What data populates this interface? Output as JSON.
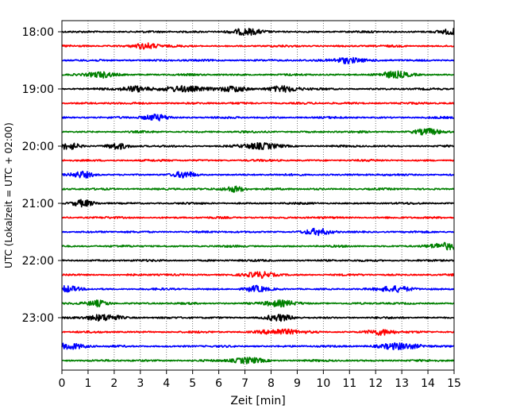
{
  "chart_data": {
    "type": "line",
    "title": "",
    "xlabel": "Zeit  [min]",
    "ylabel": "UTC (Lokalzeit = UTC + 02:00)",
    "xlim": [
      0,
      15
    ],
    "x_ticks": [
      "0",
      "1",
      "2",
      "3",
      "4",
      "5",
      "6",
      "7",
      "8",
      "9",
      "10",
      "11",
      "12",
      "13",
      "14",
      "15"
    ],
    "y_tick_labels": [
      "18:00",
      "19:00",
      "20:00",
      "21:00",
      "22:00",
      "23:00"
    ],
    "grid": "vertical dotted",
    "legend": "none",
    "trace_colors": [
      "#000000",
      "#ff0000",
      "#0000ff",
      "#008000"
    ],
    "traces": [
      {
        "start": "18:00",
        "bursts": [
          [
            7.0,
            0.6
          ],
          [
            15.0,
            0.6
          ]
        ]
      },
      {
        "start": "18:15",
        "bursts": [
          [
            3.2,
            0.5
          ]
        ]
      },
      {
        "start": "18:30",
        "bursts": [
          [
            10.9,
            0.6
          ]
        ]
      },
      {
        "start": "18:45",
        "bursts": [
          [
            1.5,
            0.5
          ],
          [
            12.7,
            0.6
          ]
        ]
      },
      {
        "start": "19:00",
        "bursts": [
          [
            2.8,
            0.5
          ],
          [
            4.6,
            0.8
          ],
          [
            6.6,
            0.5
          ],
          [
            8.5,
            0.6
          ]
        ]
      },
      {
        "start": "19:15",
        "bursts": []
      },
      {
        "start": "19:30",
        "bursts": [
          [
            3.6,
            0.5
          ]
        ]
      },
      {
        "start": "19:45",
        "bursts": [
          [
            14.0,
            0.5
          ]
        ]
      },
      {
        "start": "20:00",
        "bursts": [
          [
            0.3,
            0.4
          ],
          [
            2.1,
            0.4
          ],
          [
            7.6,
            0.7
          ]
        ]
      },
      {
        "start": "20:15",
        "bursts": []
      },
      {
        "start": "20:30",
        "bursts": [
          [
            0.8,
            0.4
          ],
          [
            4.7,
            0.4
          ]
        ]
      },
      {
        "start": "20:45",
        "bursts": [
          [
            6.6,
            0.4
          ]
        ]
      },
      {
        "start": "21:00",
        "bursts": [
          [
            0.8,
            0.4
          ]
        ]
      },
      {
        "start": "21:15",
        "bursts": []
      },
      {
        "start": "21:30",
        "bursts": [
          [
            9.8,
            0.5
          ]
        ]
      },
      {
        "start": "21:45",
        "bursts": [
          [
            14.8,
            0.8
          ]
        ]
      },
      {
        "start": "22:00",
        "bursts": []
      },
      {
        "start": "22:15",
        "bursts": [
          [
            7.6,
            0.5
          ]
        ]
      },
      {
        "start": "22:30",
        "bursts": [
          [
            0.2,
            0.5
          ],
          [
            7.4,
            0.4
          ],
          [
            12.8,
            0.6
          ]
        ]
      },
      {
        "start": "22:45",
        "bursts": [
          [
            1.4,
            0.4
          ],
          [
            8.3,
            0.6
          ]
        ]
      },
      {
        "start": "23:00",
        "bursts": [
          [
            1.6,
            0.7
          ],
          [
            8.3,
            0.5
          ]
        ]
      },
      {
        "start": "23:15",
        "bursts": [
          [
            8.3,
            0.7
          ],
          [
            12.2,
            0.5
          ]
        ]
      },
      {
        "start": "23:30",
        "bursts": [
          [
            0.3,
            0.6
          ],
          [
            12.9,
            0.8
          ]
        ]
      },
      {
        "start": "23:45",
        "bursts": [
          [
            7.1,
            0.6
          ]
        ]
      }
    ]
  }
}
